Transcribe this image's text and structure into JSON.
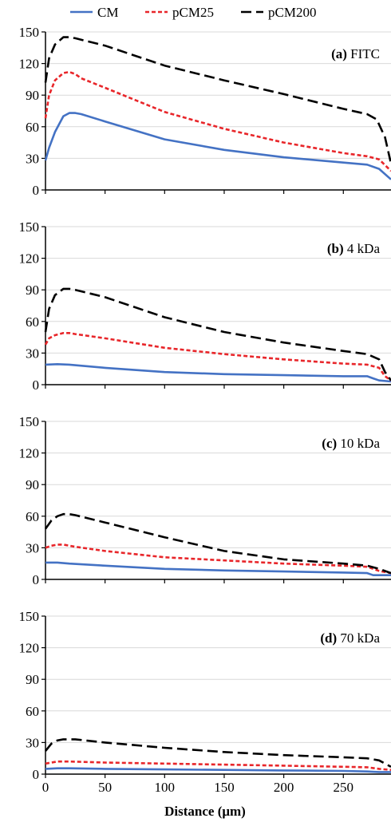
{
  "legend": {
    "position": "top",
    "items": [
      {
        "label": "CM",
        "color": "#4472C4",
        "dash": "solid"
      },
      {
        "label": "pCM25",
        "color": "#E8262A",
        "dash": "short-dash"
      },
      {
        "label": "pCM200",
        "color": "#000000",
        "dash": "long-dash"
      }
    ]
  },
  "xlabel": "Distance (μm)",
  "x_ticks": [
    "0",
    "50",
    "100",
    "150",
    "200",
    "250"
  ],
  "y_ticks": [
    "0",
    "30",
    "60",
    "90",
    "120",
    "150"
  ],
  "chart_data": [
    {
      "type": "line",
      "panel_label": "(a)",
      "panel_name": "FITC",
      "xlabel": "",
      "ylabel": "",
      "xlim": [
        0,
        290
      ],
      "ylim": [
        0,
        150
      ],
      "grid": true,
      "series": [
        {
          "name": "CM",
          "color": "#4472C4",
          "x": [
            0,
            3,
            8,
            15,
            20,
            25,
            30,
            50,
            100,
            150,
            200,
            250,
            270,
            280,
            290
          ],
          "y": [
            28,
            40,
            55,
            70,
            73,
            73,
            72,
            65,
            48,
            38,
            31,
            26,
            24,
            20,
            10
          ]
        },
        {
          "name": "pCM25",
          "color": "#E8262A",
          "x": [
            0,
            3,
            8,
            15,
            20,
            25,
            30,
            50,
            100,
            150,
            200,
            250,
            270,
            280,
            290
          ],
          "y": [
            68,
            90,
            104,
            111,
            112,
            110,
            106,
            97,
            74,
            58,
            45,
            35,
            32,
            29,
            18
          ]
        },
        {
          "name": "pCM200",
          "color": "#000000",
          "x": [
            0,
            3,
            8,
            15,
            20,
            25,
            50,
            100,
            150,
            200,
            250,
            270,
            278,
            285,
            290
          ],
          "y": [
            102,
            125,
            138,
            145,
            145,
            144,
            137,
            118,
            104,
            91,
            77,
            72,
            67,
            50,
            25
          ]
        }
      ]
    },
    {
      "type": "line",
      "panel_label": "(b)",
      "panel_name": "4 kDa",
      "xlabel": "",
      "ylabel": "",
      "xlim": [
        0,
        290
      ],
      "ylim": [
        0,
        150
      ],
      "grid": true,
      "series": [
        {
          "name": "CM",
          "color": "#4472C4",
          "x": [
            0,
            10,
            20,
            50,
            100,
            150,
            200,
            250,
            270,
            275,
            280,
            290
          ],
          "y": [
            19,
            19.5,
            19,
            16,
            12,
            10,
            9,
            8,
            8,
            6,
            4,
            3
          ]
        },
        {
          "name": "pCM25",
          "color": "#E8262A",
          "x": [
            0,
            3,
            8,
            15,
            20,
            25,
            50,
            100,
            150,
            200,
            250,
            270,
            280,
            285,
            290
          ],
          "y": [
            38,
            44,
            47,
            49,
            49,
            48,
            44,
            35,
            29,
            24,
            20,
            19,
            16,
            8,
            4
          ]
        },
        {
          "name": "pCM200",
          "color": "#000000",
          "x": [
            0,
            3,
            8,
            15,
            20,
            25,
            50,
            100,
            150,
            200,
            250,
            270,
            280,
            285,
            290
          ],
          "y": [
            50,
            72,
            85,
            91,
            91,
            90,
            83,
            64,
            50,
            40,
            32,
            29,
            24,
            12,
            4
          ]
        }
      ]
    },
    {
      "type": "line",
      "panel_label": "(c)",
      "panel_name": "10 kDa",
      "xlabel": "",
      "ylabel": "",
      "xlim": [
        0,
        290
      ],
      "ylim": [
        0,
        150
      ],
      "grid": true,
      "series": [
        {
          "name": "CM",
          "color": "#4472C4",
          "x": [
            0,
            10,
            20,
            50,
            100,
            150,
            200,
            250,
            270,
            275,
            290
          ],
          "y": [
            16,
            16,
            15,
            13,
            10,
            8.5,
            7.5,
            6.5,
            6,
            4,
            4
          ]
        },
        {
          "name": "pCM25",
          "color": "#E8262A",
          "x": [
            0,
            5,
            10,
            15,
            20,
            25,
            50,
            100,
            150,
            200,
            250,
            270,
            280,
            290
          ],
          "y": [
            30,
            32,
            33,
            33,
            32,
            31,
            27,
            21,
            18,
            15,
            13,
            12,
            8,
            6
          ]
        },
        {
          "name": "pCM200",
          "color": "#000000",
          "x": [
            0,
            5,
            10,
            15,
            20,
            25,
            50,
            100,
            150,
            200,
            250,
            270,
            280,
            290
          ],
          "y": [
            48,
            56,
            60,
            62,
            62,
            61,
            54,
            40,
            27,
            19,
            15,
            13,
            10,
            6
          ]
        }
      ]
    },
    {
      "type": "line",
      "panel_label": "(d)",
      "panel_name": "70 kDa",
      "xlabel": "",
      "ylabel": "",
      "xlim": [
        0,
        290
      ],
      "ylim": [
        0,
        150
      ],
      "grid": true,
      "series": [
        {
          "name": "CM",
          "color": "#4472C4",
          "x": [
            0,
            10,
            20,
            50,
            100,
            150,
            200,
            250,
            270,
            280,
            290
          ],
          "y": [
            5,
            5.5,
            5.5,
            5,
            4.5,
            4,
            3.5,
            3,
            2.5,
            2,
            2
          ]
        },
        {
          "name": "pCM25",
          "color": "#E8262A",
          "x": [
            0,
            10,
            15,
            20,
            50,
            100,
            150,
            200,
            250,
            270,
            280,
            290
          ],
          "y": [
            10,
            12,
            12,
            12,
            11,
            10,
            9,
            8,
            7,
            6.5,
            5,
            4
          ]
        },
        {
          "name": "pCM200",
          "color": "#000000",
          "x": [
            0,
            5,
            10,
            15,
            20,
            25,
            50,
            100,
            150,
            200,
            250,
            270,
            280,
            285,
            290
          ],
          "y": [
            22,
            29,
            32,
            33,
            33,
            33,
            30,
            25,
            21,
            18,
            16,
            15,
            13,
            10,
            7
          ]
        }
      ]
    }
  ]
}
